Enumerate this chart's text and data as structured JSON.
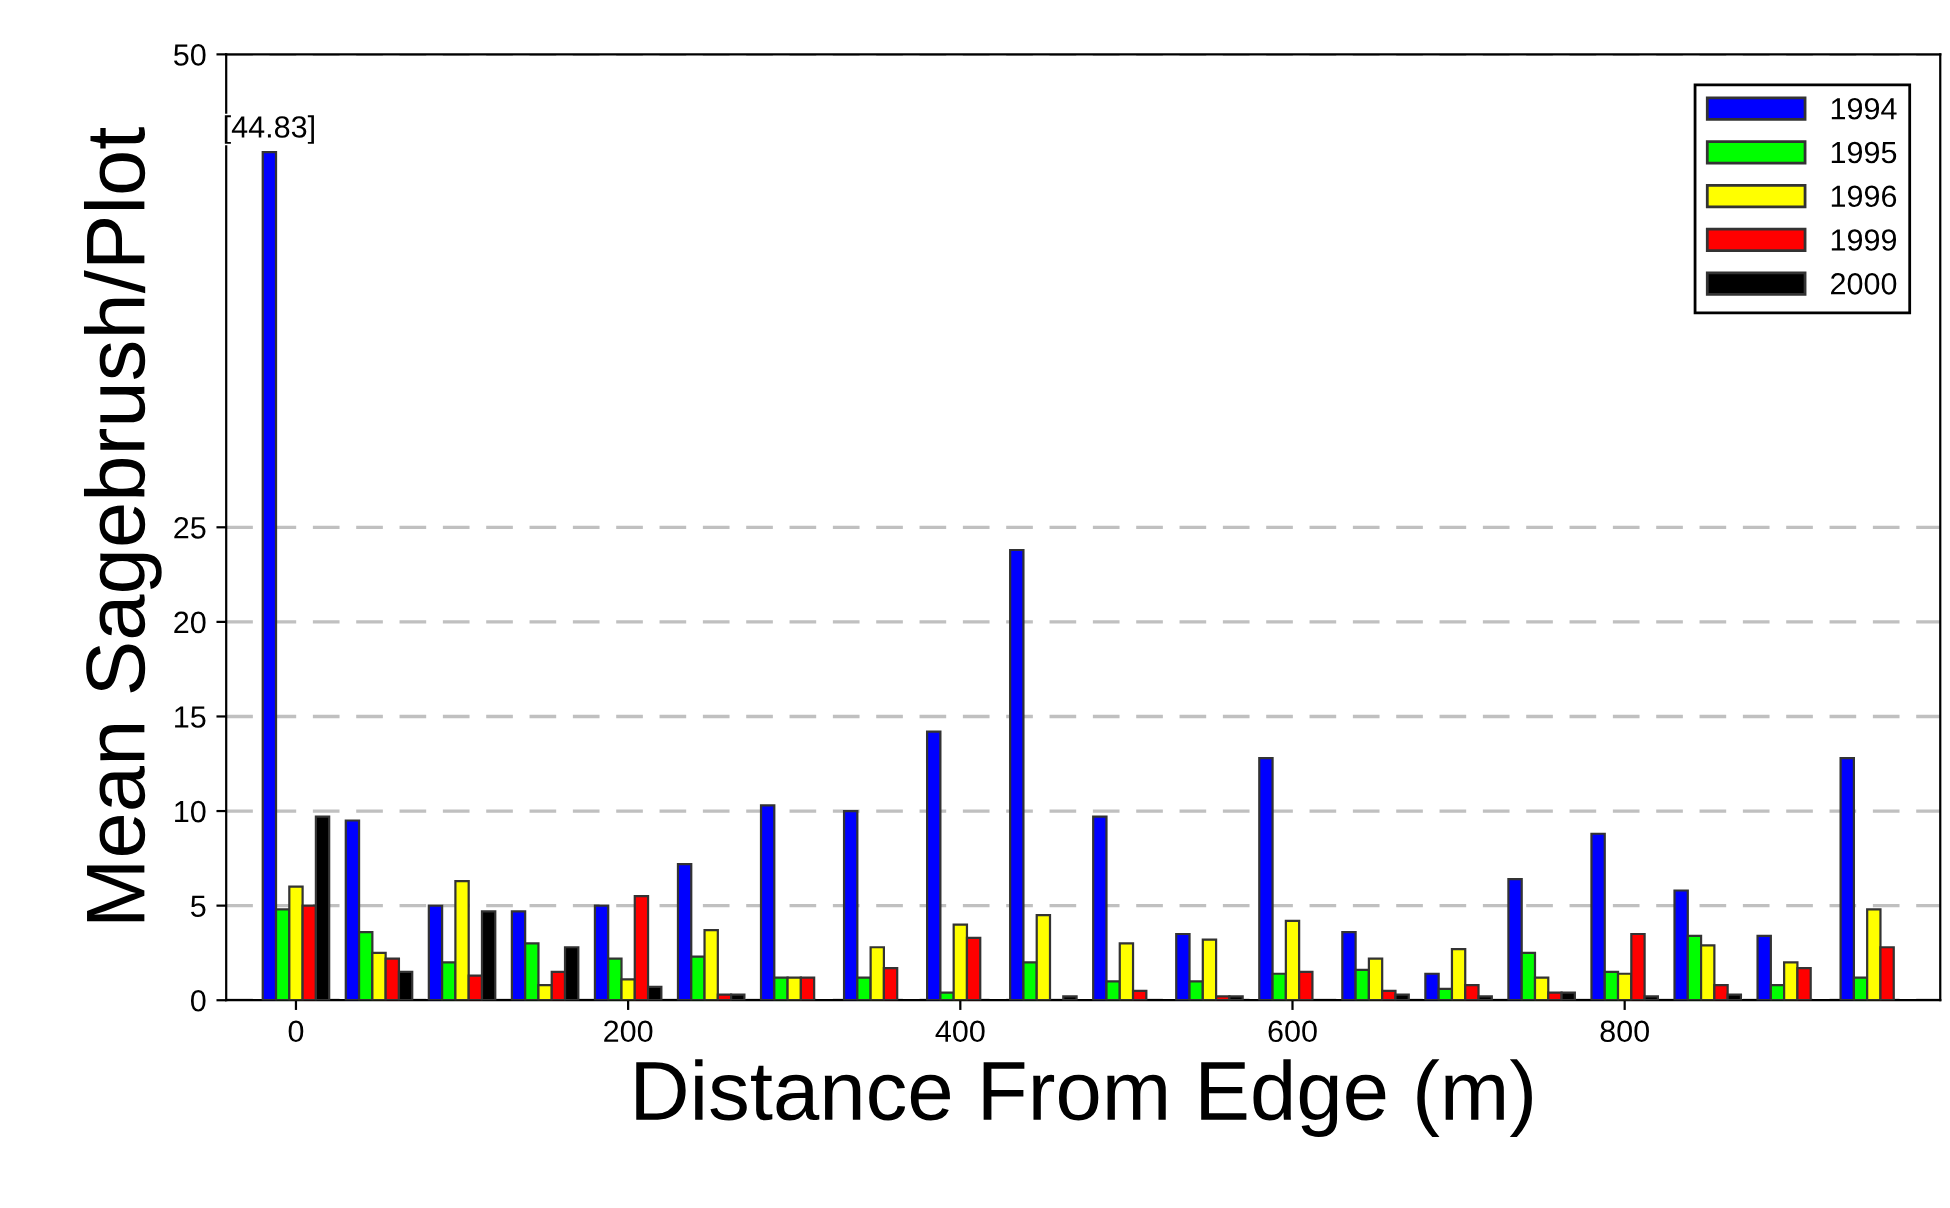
{
  "chart_data": {
    "type": "bar",
    "xlabel": "Distance From Edge (m)",
    "ylabel": "Mean Sagebrush/Plot",
    "x": [
      0,
      50,
      100,
      150,
      200,
      250,
      300,
      350,
      400,
      450,
      500,
      550,
      600,
      650,
      700,
      750,
      800,
      850,
      900,
      950
    ],
    "series": [
      {
        "name": "1994",
        "color": "#0000ff",
        "values": [
          44.83,
          9.5,
          5.0,
          4.7,
          5.0,
          7.2,
          10.3,
          10.0,
          14.2,
          23.8,
          9.7,
          3.5,
          12.8,
          3.6,
          1.4,
          6.4,
          8.8,
          5.8,
          3.4,
          12.8
        ],
        "value_labels": [
          "[44.83]",
          null,
          null,
          null,
          null,
          null,
          null,
          null,
          null,
          null,
          null,
          null,
          null,
          null,
          null,
          null,
          null,
          null,
          null,
          null
        ]
      },
      {
        "name": "1995",
        "color": "#00ff00",
        "values": [
          4.8,
          3.6,
          2.0,
          3.0,
          2.2,
          2.3,
          1.2,
          1.2,
          0.4,
          2.0,
          1.0,
          1.0,
          1.4,
          1.6,
          0.6,
          2.5,
          1.5,
          3.4,
          0.8,
          1.2
        ]
      },
      {
        "name": "1996",
        "color": "#ffff00",
        "values": [
          6.0,
          2.5,
          6.3,
          0.8,
          1.1,
          3.7,
          1.2,
          2.8,
          4.0,
          4.5,
          3.0,
          3.2,
          4.2,
          2.2,
          2.7,
          1.2,
          1.4,
          2.9,
          2.0,
          4.8
        ]
      },
      {
        "name": "1999",
        "color": "#ff0000",
        "values": [
          5.0,
          2.2,
          1.3,
          1.5,
          5.5,
          0.3,
          1.2,
          1.7,
          3.3,
          null,
          0.5,
          0.2,
          1.5,
          0.5,
          0.8,
          0.4,
          3.5,
          0.8,
          1.7,
          2.8
        ]
      },
      {
        "name": "2000",
        "color": "#000000",
        "values": [
          9.7,
          1.5,
          4.7,
          2.8,
          0.7,
          0.3,
          null,
          null,
          null,
          0.2,
          null,
          0.2,
          null,
          0.3,
          0.2,
          0.4,
          0.2,
          0.3,
          null,
          null
        ]
      }
    ],
    "xlim": [
      -42,
      990
    ],
    "xticks": [
      0,
      200,
      400,
      600,
      800
    ],
    "ylim": [
      0,
      50
    ],
    "yticks": [
      0,
      5,
      10,
      15,
      20,
      25,
      50
    ],
    "grid": "y",
    "legend": "top right"
  }
}
